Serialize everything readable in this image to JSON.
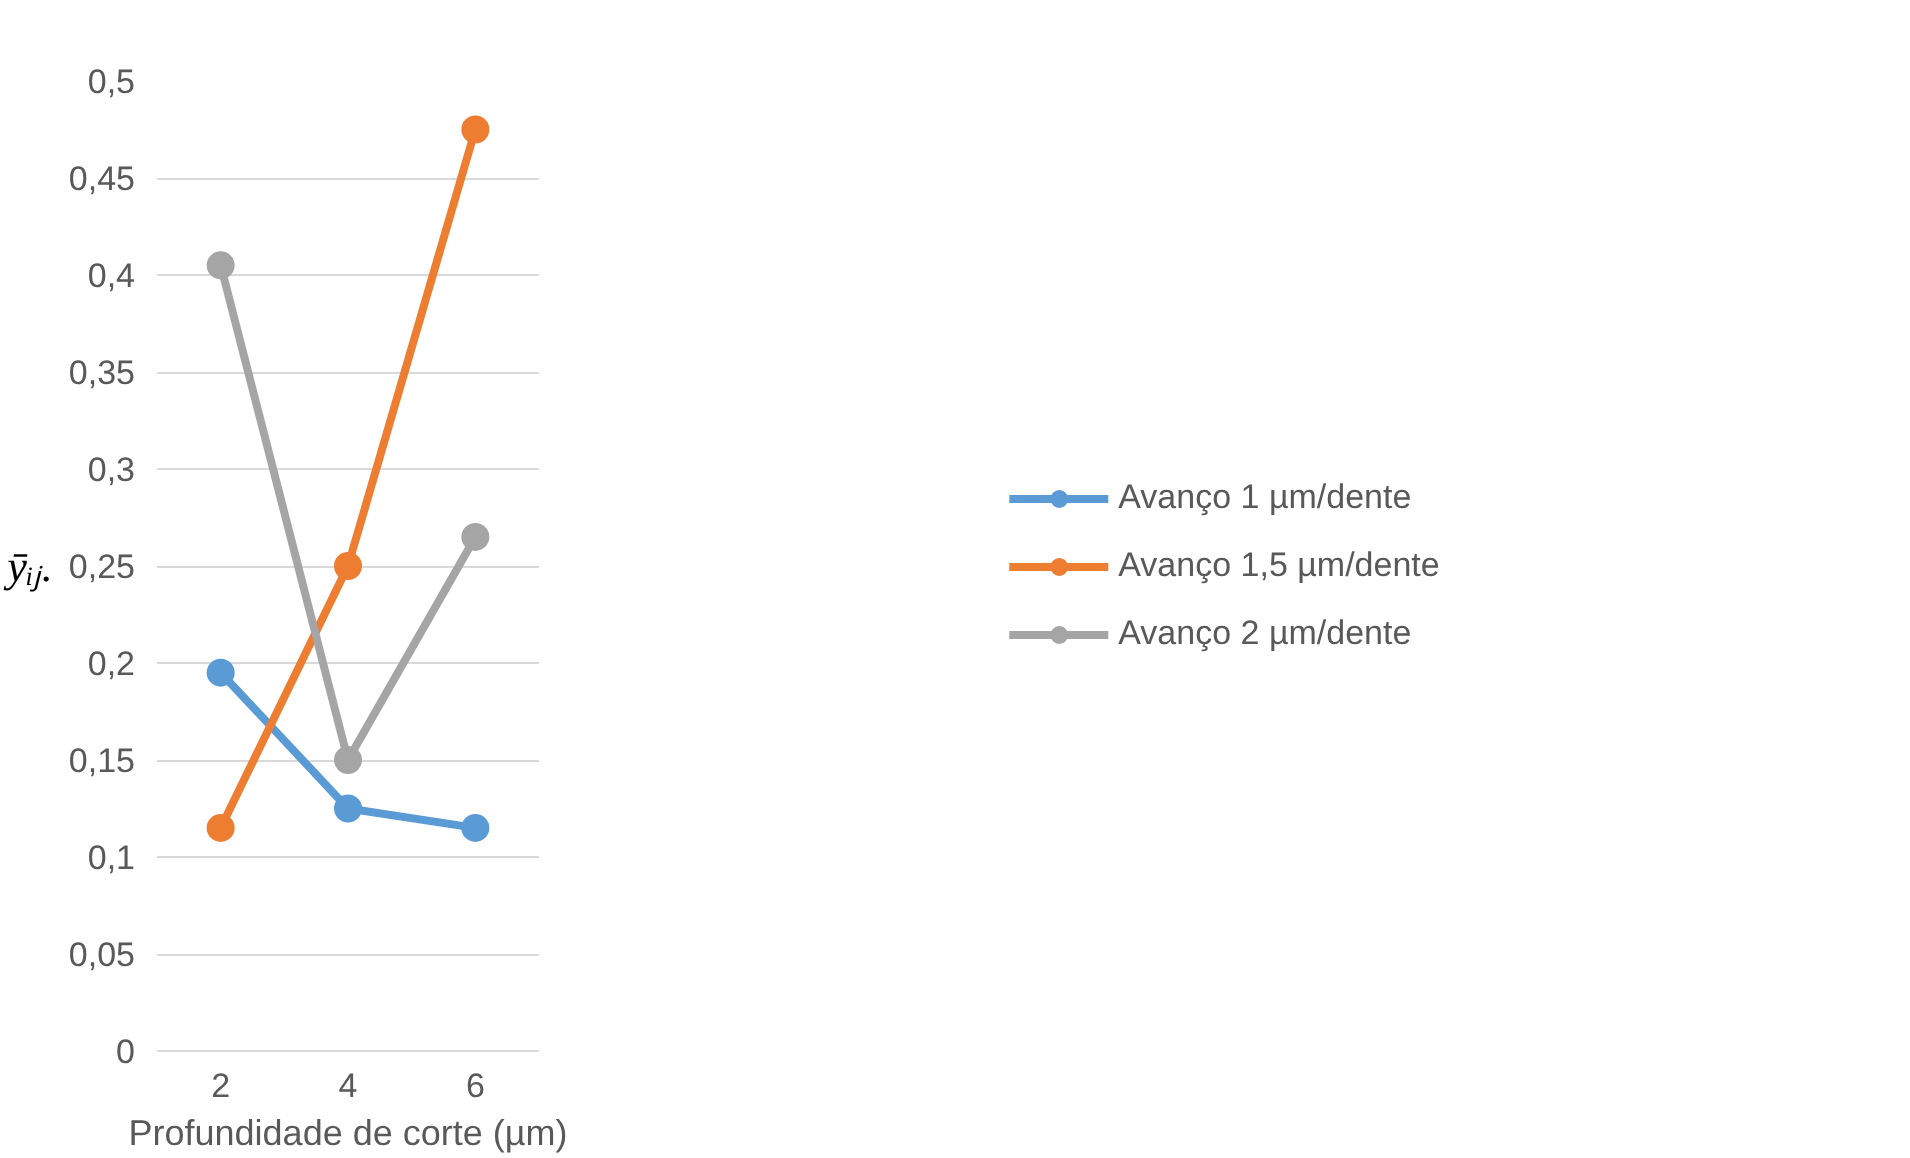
{
  "chart_data": {
    "type": "line",
    "xlabel": "Profundidade de corte (µm)",
    "ylabel": "ȳᵢⱼ.",
    "categories": [
      "2",
      "4",
      "6"
    ],
    "series": [
      {
        "name": "Avanço 1 µm/dente",
        "color": "#5b9bd5",
        "values": [
          0.195,
          0.125,
          0.115
        ]
      },
      {
        "name": "Avanço 1,5 µm/dente",
        "color": "#ed7d31",
        "values": [
          0.115,
          0.25,
          0.475
        ]
      },
      {
        "name": "Avanço 2 µm/dente",
        "color": "#a5a5a5",
        "values": [
          0.405,
          0.15,
          0.265
        ]
      }
    ],
    "ylim": [
      0,
      0.5
    ],
    "yticks": [
      {
        "value": 0,
        "label": "0"
      },
      {
        "value": 0.05,
        "label": "0,05"
      },
      {
        "value": 0.1,
        "label": "0,1"
      },
      {
        "value": 0.15,
        "label": "0,15"
      },
      {
        "value": 0.2,
        "label": "0,2"
      },
      {
        "value": 0.25,
        "label": "0,25"
      },
      {
        "value": 0.3,
        "label": "0,3"
      },
      {
        "value": 0.35,
        "label": "0,35"
      },
      {
        "value": 0.4,
        "label": "0,4"
      },
      {
        "value": 0.45,
        "label": "0,45"
      },
      {
        "value": 0.5,
        "label": "0,5"
      }
    ],
    "grid": "y",
    "legend": "right",
    "marker": "circle",
    "line_style": "solid"
  }
}
